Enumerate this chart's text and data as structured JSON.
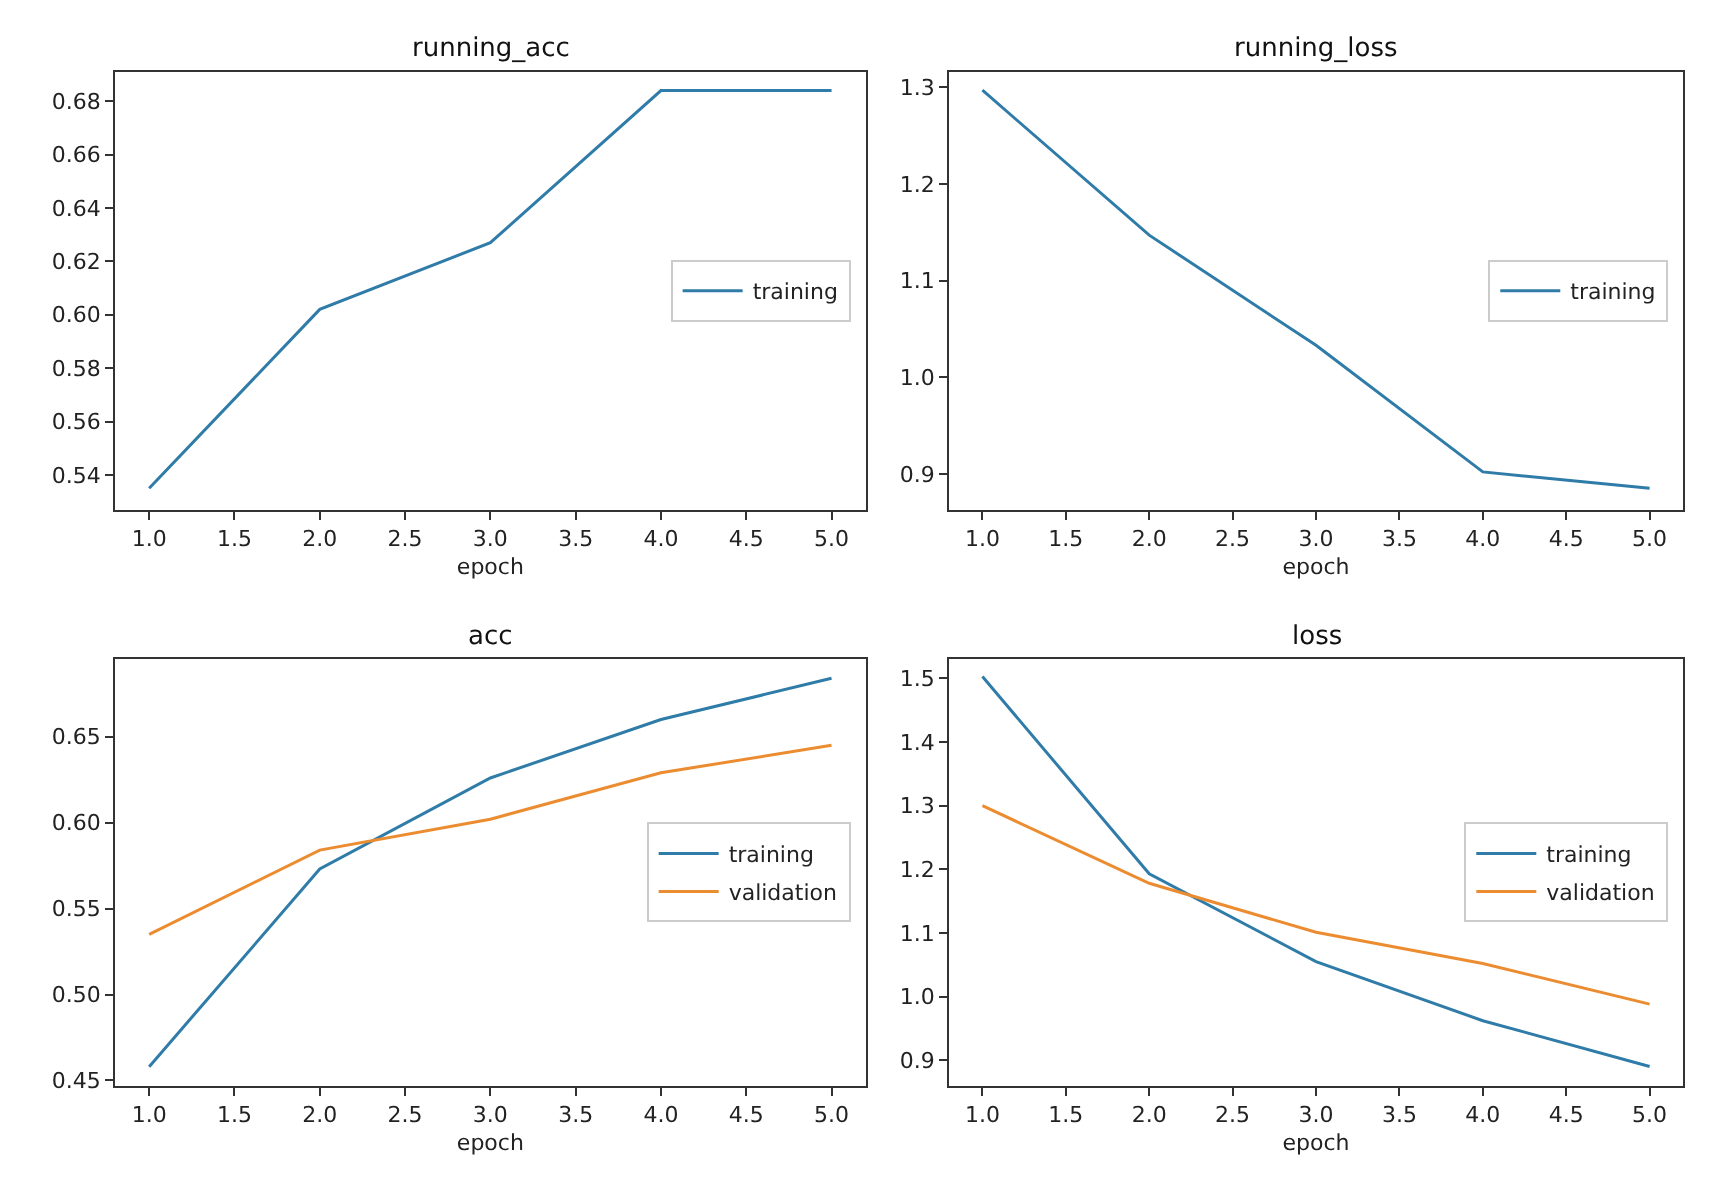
{
  "chart_data": [
    {
      "type": "line",
      "title": "running_acc",
      "xlabel": "epoch",
      "x": [
        1,
        2,
        3,
        4,
        5
      ],
      "xlim": [
        0.8,
        5.2
      ],
      "xticks": [
        {
          "value": 1,
          "label": "1.0"
        },
        {
          "value": 1.5,
          "label": "1.5"
        },
        {
          "value": 2,
          "label": "2.0"
        },
        {
          "value": 2.5,
          "label": "2.5"
        },
        {
          "value": 3,
          "label": "3.0"
        },
        {
          "value": 3.5,
          "label": "3.5"
        },
        {
          "value": 4,
          "label": "4.0"
        },
        {
          "value": 4.5,
          "label": "4.5"
        },
        {
          "value": 5,
          "label": "5.0"
        }
      ],
      "ylim": [
        0.527,
        0.691
      ],
      "yticks": [
        {
          "value": 0.54,
          "label": "0.54"
        },
        {
          "value": 0.56,
          "label": "0.56"
        },
        {
          "value": 0.58,
          "label": "0.58"
        },
        {
          "value": 0.6,
          "label": "0.60"
        },
        {
          "value": 0.62,
          "label": "0.62"
        },
        {
          "value": 0.64,
          "label": "0.64"
        },
        {
          "value": 0.66,
          "label": "0.66"
        },
        {
          "value": 0.68,
          "label": "0.68"
        }
      ],
      "grid": false,
      "legend": "right",
      "marker": "none",
      "line_style": "solid",
      "series": [
        {
          "name": "training",
          "color": "#2f7ca8",
          "values": [
            0.535,
            0.602,
            0.627,
            0.684,
            0.684
          ]
        }
      ]
    },
    {
      "type": "line",
      "title": "running_loss",
      "xlabel": "epoch",
      "x": [
        1,
        2,
        3,
        4,
        5
      ],
      "xlim": [
        0.8,
        5.2
      ],
      "xticks": [
        {
          "value": 1,
          "label": "1.0"
        },
        {
          "value": 1.5,
          "label": "1.5"
        },
        {
          "value": 2,
          "label": "2.0"
        },
        {
          "value": 2.5,
          "label": "2.5"
        },
        {
          "value": 3,
          "label": "3.0"
        },
        {
          "value": 3.5,
          "label": "3.5"
        },
        {
          "value": 4,
          "label": "4.0"
        },
        {
          "value": 4.5,
          "label": "4.5"
        },
        {
          "value": 5,
          "label": "5.0"
        }
      ],
      "ylim": [
        0.863,
        1.316
      ],
      "yticks": [
        {
          "value": 0.9,
          "label": "0.9"
        },
        {
          "value": 1.0,
          "label": "1.0"
        },
        {
          "value": 1.1,
          "label": "1.1"
        },
        {
          "value": 1.2,
          "label": "1.2"
        },
        {
          "value": 1.3,
          "label": "1.3"
        }
      ],
      "grid": false,
      "legend": "right",
      "marker": "none",
      "line_style": "solid",
      "series": [
        {
          "name": "training",
          "color": "#2f7ca8",
          "values": [
            1.297,
            1.147,
            1.033,
            0.902,
            0.885
          ]
        }
      ]
    },
    {
      "type": "line",
      "title": "acc",
      "xlabel": "epoch",
      "x": [
        1,
        2,
        3,
        4,
        5
      ],
      "xlim": [
        0.8,
        5.2
      ],
      "xticks": [
        {
          "value": 1,
          "label": "1.0"
        },
        {
          "value": 1.5,
          "label": "1.5"
        },
        {
          "value": 2,
          "label": "2.0"
        },
        {
          "value": 2.5,
          "label": "2.5"
        },
        {
          "value": 3,
          "label": "3.0"
        },
        {
          "value": 3.5,
          "label": "3.5"
        },
        {
          "value": 4,
          "label": "4.0"
        },
        {
          "value": 4.5,
          "label": "4.5"
        },
        {
          "value": 5,
          "label": "5.0"
        }
      ],
      "ylim": [
        0.447,
        0.695
      ],
      "yticks": [
        {
          "value": 0.45,
          "label": "0.45"
        },
        {
          "value": 0.5,
          "label": "0.50"
        },
        {
          "value": 0.55,
          "label": "0.55"
        },
        {
          "value": 0.6,
          "label": "0.60"
        },
        {
          "value": 0.65,
          "label": "0.65"
        }
      ],
      "grid": false,
      "legend": "right",
      "marker": "none",
      "line_style": "solid",
      "series": [
        {
          "name": "training",
          "color": "#2f7ca8",
          "values": [
            0.458,
            0.573,
            0.626,
            0.66,
            0.684
          ]
        },
        {
          "name": "validation",
          "color": "#ec8c30",
          "values": [
            0.535,
            0.584,
            0.602,
            0.629,
            0.645
          ]
        }
      ]
    },
    {
      "type": "line",
      "title": "loss",
      "xlabel": "epoch",
      "x": [
        1,
        2,
        3,
        4,
        5
      ],
      "xlim": [
        0.8,
        5.2
      ],
      "xticks": [
        {
          "value": 1,
          "label": "1.0"
        },
        {
          "value": 1.5,
          "label": "1.5"
        },
        {
          "value": 2,
          "label": "2.0"
        },
        {
          "value": 2.5,
          "label": "2.5"
        },
        {
          "value": 3,
          "label": "3.0"
        },
        {
          "value": 3.5,
          "label": "3.5"
        },
        {
          "value": 4,
          "label": "4.0"
        },
        {
          "value": 4.5,
          "label": "4.5"
        },
        {
          "value": 5,
          "label": "5.0"
        }
      ],
      "ylim": [
        0.86,
        1.53
      ],
      "yticks": [
        {
          "value": 0.9,
          "label": "0.9"
        },
        {
          "value": 1.0,
          "label": "1.0"
        },
        {
          "value": 1.1,
          "label": "1.1"
        },
        {
          "value": 1.2,
          "label": "1.2"
        },
        {
          "value": 1.3,
          "label": "1.3"
        },
        {
          "value": 1.4,
          "label": "1.4"
        },
        {
          "value": 1.5,
          "label": "1.5"
        }
      ],
      "grid": false,
      "legend": "right",
      "marker": "none",
      "line_style": "solid",
      "series": [
        {
          "name": "training",
          "color": "#2f7ca8",
          "values": [
            1.503,
            1.193,
            1.055,
            0.962,
            0.89
          ]
        },
        {
          "name": "validation",
          "color": "#ec8c30",
          "values": [
            1.3,
            1.178,
            1.101,
            1.052,
            0.988
          ]
        }
      ]
    }
  ]
}
